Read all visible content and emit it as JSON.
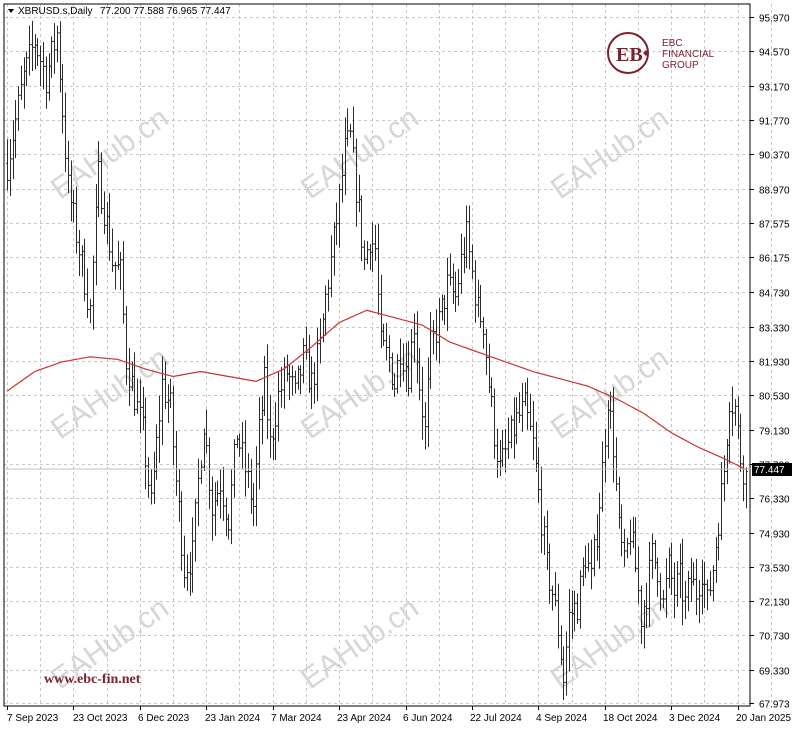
{
  "header": {
    "symbol_text": "XBRUSD.s,Daily",
    "ohlc_text": "77.200 77.588 76.965 77.447"
  },
  "brand": {
    "line1": "EBC",
    "line2": "FINANCIAL",
    "line3": "GROUP",
    "website": "www.ebc-fin.net",
    "watermark_text": "EAHub.cn",
    "brand_color": "#7a2230"
  },
  "chart_data": {
    "type": "bar",
    "title": "",
    "xlabel": "",
    "ylabel": "",
    "ylim": [
      67.973,
      95.97
    ],
    "y_ticks": [
      95.97,
      94.57,
      93.17,
      91.77,
      90.37,
      88.97,
      87.575,
      86.175,
      84.73,
      83.33,
      81.93,
      80.53,
      79.13,
      77.73,
      76.33,
      74.93,
      73.53,
      72.13,
      70.73,
      69.33,
      67.973
    ],
    "y_tick_labels": [
      "95.970",
      "94.570",
      "93.170",
      "91.770",
      "90.370",
      "88.970",
      "87.575",
      "86.175",
      "84.730",
      "83.330",
      "81.930",
      "80.530",
      "79.130",
      "77.730",
      "76.330",
      "74.930",
      "73.530",
      "72.130",
      "70.730",
      "69.330",
      "67.973"
    ],
    "x_tick_labels": [
      "7 Sep 2023",
      "23 Oct 2023",
      "6 Dec 2023",
      "23 Jan 2024",
      "7 Mar 2024",
      "23 Apr 2024",
      "6 Jun 2024",
      "22 Jul 2024",
      "4 Sep 2024",
      "18 Oct 2024",
      "3 Dec 2024",
      "20 Jan 2025"
    ],
    "grid": true,
    "current_price": "77.447",
    "price_path": [
      [
        0,
        90.0
      ],
      [
        6,
        93.5
      ],
      [
        10,
        95.0
      ],
      [
        14,
        93.5
      ],
      [
        18,
        95.3
      ],
      [
        22,
        89.0
      ],
      [
        26,
        86.5
      ],
      [
        30,
        84.0
      ],
      [
        33,
        89.5
      ],
      [
        36,
        87.5
      ],
      [
        38,
        86.0
      ],
      [
        41,
        85.5
      ],
      [
        43,
        82.0
      ],
      [
        46,
        80.5
      ],
      [
        49,
        79.0
      ],
      [
        52,
        76.0
      ],
      [
        56,
        81.0
      ],
      [
        59,
        80.0
      ],
      [
        61,
        77.0
      ],
      [
        64,
        73.5
      ],
      [
        67,
        74.0
      ],
      [
        69,
        77.0
      ],
      [
        71,
        79.5
      ],
      [
        74,
        76.0
      ],
      [
        77,
        77.0
      ],
      [
        80,
        75.5
      ],
      [
        83,
        79.0
      ],
      [
        86,
        77.5
      ],
      [
        89,
        76.0
      ],
      [
        91,
        79.0
      ],
      [
        93,
        81.0
      ],
      [
        95,
        78.5
      ],
      [
        98,
        80.5
      ],
      [
        101,
        81.5
      ],
      [
        104,
        80.5
      ],
      [
        107,
        82.0
      ],
      [
        110,
        81.0
      ],
      [
        113,
        82.5
      ],
      [
        115,
        84.5
      ],
      [
        117,
        86.0
      ],
      [
        120,
        88.5
      ],
      [
        122,
        90.5
      ],
      [
        124,
        91.0
      ],
      [
        126,
        89.0
      ],
      [
        129,
        86.0
      ],
      [
        131,
        87.0
      ],
      [
        133,
        86.5
      ],
      [
        135,
        82.5
      ],
      [
        138,
        82.0
      ],
      [
        140,
        81.0
      ],
      [
        142,
        82.5
      ],
      [
        145,
        81.5
      ],
      [
        147,
        83.5
      ],
      [
        149,
        81.0
      ],
      [
        151,
        79.0
      ],
      [
        153,
        82.5
      ],
      [
        156,
        83.5
      ],
      [
        159,
        85.0
      ],
      [
        162,
        84.5
      ],
      [
        164,
        86.0
      ],
      [
        166,
        87.0
      ],
      [
        168,
        85.5
      ],
      [
        170,
        84.0
      ],
      [
        172,
        83.5
      ],
      [
        174,
        81.0
      ],
      [
        176,
        79.0
      ],
      [
        178,
        77.5
      ],
      [
        181,
        78.5
      ],
      [
        184,
        79.5
      ],
      [
        187,
        80.0
      ],
      [
        190,
        78.5
      ],
      [
        192,
        76.5
      ],
      [
        195,
        73.5
      ],
      [
        197,
        72.5
      ],
      [
        199,
        71.0
      ],
      [
        201,
        69.0
      ],
      [
        203,
        71.5
      ],
      [
        206,
        72.0
      ],
      [
        209,
        74.0
      ],
      [
        211,
        73.0
      ],
      [
        213,
        75.0
      ],
      [
        215,
        77.5
      ],
      [
        217,
        80.5
      ],
      [
        219,
        78.5
      ],
      [
        221,
        75.0
      ],
      [
        223,
        73.5
      ],
      [
        225,
        75.0
      ],
      [
        227,
        73.5
      ],
      [
        229,
        71.5
      ],
      [
        231,
        72.5
      ],
      [
        233,
        74.0
      ],
      [
        235,
        73.5
      ],
      [
        237,
        72.0
      ],
      [
        239,
        73.5
      ],
      [
        241,
        72.5
      ],
      [
        243,
        73.0
      ],
      [
        245,
        72.0
      ],
      [
        247,
        73.0
      ],
      [
        249,
        72.5
      ],
      [
        251,
        73.5
      ],
      [
        253,
        72.0
      ],
      [
        255,
        73.5
      ],
      [
        257,
        75.5
      ],
      [
        259,
        77.5
      ],
      [
        261,
        80.5
      ],
      [
        263,
        80.0
      ],
      [
        265,
        78.0
      ],
      [
        267,
        77.2
      ]
    ],
    "moving_average": [
      [
        0,
        80.7
      ],
      [
        10,
        81.5
      ],
      [
        20,
        81.9
      ],
      [
        30,
        82.1
      ],
      [
        40,
        82.0
      ],
      [
        50,
        81.6
      ],
      [
        60,
        81.3
      ],
      [
        70,
        81.5
      ],
      [
        80,
        81.3
      ],
      [
        90,
        81.1
      ],
      [
        100,
        81.6
      ],
      [
        110,
        82.5
      ],
      [
        120,
        83.5
      ],
      [
        130,
        84.0
      ],
      [
        140,
        83.7
      ],
      [
        150,
        83.4
      ],
      [
        160,
        82.7
      ],
      [
        170,
        82.3
      ],
      [
        180,
        81.9
      ],
      [
        190,
        81.5
      ],
      [
        200,
        81.2
      ],
      [
        210,
        80.9
      ],
      [
        220,
        80.4
      ],
      [
        230,
        79.8
      ],
      [
        240,
        79.0
      ],
      [
        250,
        78.4
      ],
      [
        260,
        77.9
      ],
      [
        267,
        77.5
      ]
    ]
  },
  "colors": {
    "bars": "#2b2b2b",
    "moving_average": "#cc3333",
    "grid": "#c8c8c8",
    "price_label_bg": "#000000",
    "price_label_text": "#ffffff"
  }
}
